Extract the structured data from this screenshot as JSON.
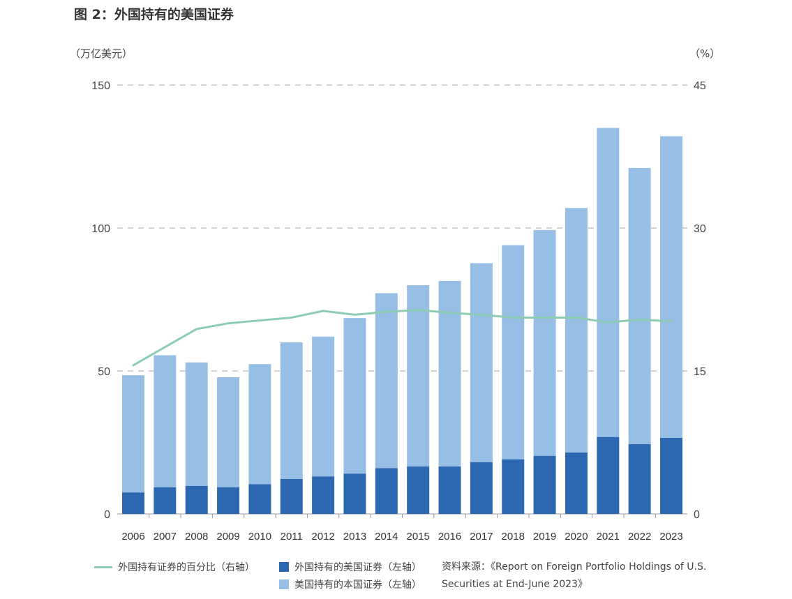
{
  "title": "图 2：外国持有的美国证券",
  "units": {
    "left": "（万亿美元）",
    "right": "（%）"
  },
  "legend": {
    "line_label": "外国持有证券的百分比（右轴）",
    "dark_label": "外国持有的美国证券（左轴）",
    "light_label": "美国持有的本国证券（左轴）"
  },
  "source": "资料来源：《Report on Foreign Portfolio Holdings of U.S. Securities at End-June 2023》",
  "colors": {
    "dark": "#2c67b1",
    "light": "#97bfe6",
    "line": "#8ccbb4",
    "grid": "#bbbbbb"
  },
  "chart_data": {
    "type": "bar",
    "stacked": true,
    "categories": [
      "2006",
      "2007",
      "2008",
      "2009",
      "2010",
      "2011",
      "2012",
      "2013",
      "2014",
      "2015",
      "2016",
      "2017",
      "2018",
      "2019",
      "2020",
      "2021",
      "2022",
      "2023"
    ],
    "series": [
      {
        "name": "外国持有的美国证券（左轴）",
        "axis": "left",
        "values": [
          7.5,
          9.3,
          9.8,
          9.3,
          10.4,
          12.2,
          13.1,
          14.1,
          16.0,
          16.6,
          16.6,
          18.1,
          19.1,
          20.3,
          21.5,
          26.9,
          24.4,
          26.6
        ]
      },
      {
        "name": "美国持有的本国证券（左轴）",
        "axis": "left",
        "values": [
          41.0,
          46.2,
          43.2,
          38.5,
          42.0,
          47.8,
          48.9,
          54.4,
          61.2,
          63.4,
          64.9,
          69.6,
          74.9,
          79.0,
          85.5,
          108.1,
          96.6,
          105.5
        ]
      },
      {
        "name": "外国持有证券的百分比（右轴）",
        "type": "line",
        "axis": "right",
        "values": [
          15.6,
          17.5,
          19.4,
          20.0,
          20.3,
          20.6,
          21.3,
          20.9,
          21.2,
          21.4,
          21.1,
          20.9,
          20.6,
          20.6,
          20.6,
          20.1,
          20.4,
          20.2
        ]
      }
    ],
    "y_left": {
      "range": [
        0,
        150
      ],
      "ticks": [
        "0",
        "50",
        "100",
        "150"
      ]
    },
    "y_right": {
      "range": [
        0,
        45
      ],
      "ticks": [
        "0",
        "15",
        "30",
        "45"
      ]
    },
    "grid": "dashed horizontal"
  }
}
